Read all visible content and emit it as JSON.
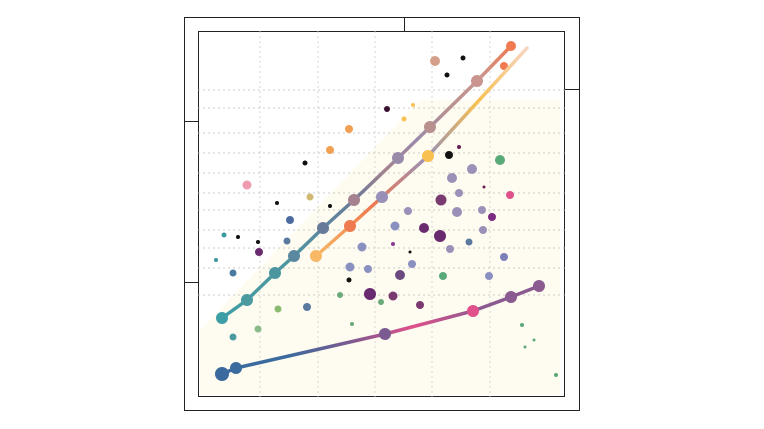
{
  "chart_data": {
    "type": "scatter",
    "xlim": [
      0,
      367
    ],
    "ylim": [
      0,
      366
    ],
    "xticks": [
      62,
      120,
      177,
      234,
      292
    ],
    "yticks": [
      102,
      129,
      149,
      167,
      187,
      204,
      224,
      244,
      264,
      289,
      307
    ],
    "grid": true,
    "series": [
      {
        "x": [
          24,
          49,
          77,
          96,
          125,
          156,
          200,
          232,
          279,
          313
        ],
        "values": [
          79,
          97,
          124,
          141,
          169,
          197,
          239,
          270,
          316,
          351
        ],
        "sizes": [
          6,
          6,
          6,
          6,
          6,
          6,
          6,
          6,
          6,
          5
        ],
        "colors": [
          "#3d9ea6",
          "#4a9aa0",
          "#4c96a0",
          "#5a88a0",
          "#687a9a",
          "#a5828f",
          "#9a8aaa",
          "#b8918f",
          "#c9958e",
          "#f07a50"
        ]
      },
      {
        "x": [
          118,
          152,
          184,
          230,
          329
        ],
        "values": [
          141,
          171,
          200,
          241,
          349
        ],
        "sizes": [
          6,
          6,
          6,
          6,
          1
        ],
        "colors": [
          "#f8b866",
          "#f07a50",
          "#9890b8",
          "#f8c050",
          "#f6d5c0"
        ]
      },
      {
        "x": [
          24,
          38,
          187,
          275,
          313,
          341
        ],
        "values": [
          23,
          29,
          63,
          86,
          100,
          111
        ],
        "sizes": [
          7,
          6,
          6,
          6,
          6,
          6
        ],
        "colors": [
          "#3a6a9e",
          "#3a6a9e",
          "#7a5a90",
          "#e0508a",
          "#8a5a90",
          "#8a5a90"
        ]
      }
    ],
    "points": {
      "x": [
        237,
        265,
        249,
        306,
        189,
        215,
        206,
        151,
        261,
        251,
        302,
        132,
        107,
        49,
        254,
        274,
        286,
        261,
        312,
        112,
        79,
        132,
        243,
        210,
        259,
        284,
        294,
        92,
        197,
        226,
        242,
        285,
        26,
        40,
        89,
        60,
        164,
        195,
        252,
        271,
        212,
        61,
        18,
        306,
        214,
        152,
        170,
        35,
        202,
        245,
        291,
        151,
        142,
        172,
        195,
        183,
        80,
        109,
        222,
        60,
        154,
        35,
        324,
        336,
        327,
        358
      ],
      "values": [
        336,
        339,
        322,
        331,
        288,
        292,
        278,
        268,
        250,
        242,
        237,
        247,
        234,
        212,
        219,
        228,
        210,
        204,
        202,
        200,
        194,
        191,
        197,
        186,
        185,
        187,
        180,
        177,
        171,
        169,
        161,
        167,
        162,
        160,
        156,
        155,
        150,
        153,
        148,
        155,
        145,
        145,
        137,
        140,
        133,
        130,
        128,
        124,
        122,
        121,
        121,
        117,
        102,
        103,
        101,
        95,
        88,
        90,
        92,
        68,
        73,
        60,
        72,
        57,
        50,
        22
      ],
      "sizes": [
        5,
        2.5,
        2.5,
        4,
        3,
        2,
        2.5,
        4,
        2,
        4,
        5,
        4,
        2.5,
        4.5,
        5,
        5,
        1.5,
        4,
        4,
        3.5,
        2,
        2,
        5.5,
        4,
        5,
        4,
        4,
        4,
        4.5,
        5,
        6,
        4,
        2.5,
        2,
        3.5,
        2,
        4.5,
        2,
        4,
        3.5,
        1.5,
        4,
        2,
        4,
        4,
        4.5,
        4,
        3.5,
        5,
        4,
        4,
        2.5,
        3,
        6,
        4.5,
        3,
        3.5,
        4,
        4,
        3.5,
        2,
        3.5,
        2,
        1.5,
        1.5,
        2
      ],
      "colors": [
        "#d4a08a",
        "#111111",
        "#111111",
        "#f07a50",
        "#3a1030",
        "#f8c050",
        "#f8c050",
        "#f0a050",
        "#6a2050",
        "#111111",
        "#5aaa7a",
        "#f0a050",
        "#111111",
        "#f09ab0",
        "#9a90b8",
        "#9a90b8",
        "#6a2050",
        "#9a90b8",
        "#e0508a",
        "#d0b870",
        "#111111",
        "#111111",
        "#7a3a70",
        "#9a90b8",
        "#9a90b8",
        "#9a90b8",
        "#7a2a80",
        "#4a6aa0",
        "#8a90c0",
        "#6a2a70",
        "#6a2a70",
        "#9a90b8",
        "#3a9aa0",
        "#111111",
        "#5a7aa0",
        "#111111",
        "#8a90c0",
        "#8a3a90",
        "#9a90b8",
        "#5a7aa0",
        "#111111",
        "#6a2a70",
        "#3a9aa0",
        "#7a80b8",
        "#8a90c0",
        "#8a90c0",
        "#8a90c0",
        "#4a7aa0",
        "#6a4a80",
        "#5aaa7a",
        "#8a90c0",
        "#111111",
        "#6aaa7a",
        "#6a2a70",
        "#7a3a70",
        "#6aaa7a",
        "#8aba70",
        "#5a7aa0",
        "#7a3a70",
        "#8aba8a",
        "#6aaa7a",
        "#4a9aa0",
        "#5aaa7a",
        "#5aaa7a",
        "#5aaa7a",
        "#5aaa7a"
      ]
    }
  }
}
